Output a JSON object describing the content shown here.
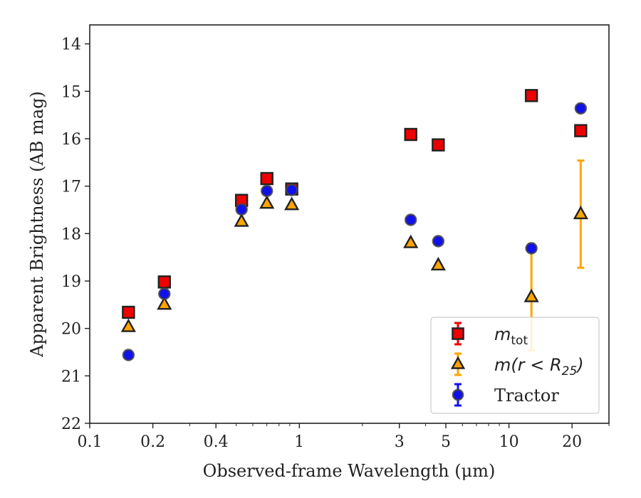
{
  "chart_data": {
    "type": "scatter",
    "title": "",
    "xlabel": "Observed-frame Wavelength (μm)",
    "ylabel": "Apparent Brightness (AB mag)",
    "xscale": "log",
    "xlim": [
      0.1,
      30
    ],
    "ylim": [
      22,
      13.6
    ],
    "y_inverted": true,
    "x_major_ticks": [
      0.1,
      0.2,
      0.4,
      1,
      3,
      5,
      10,
      20
    ],
    "x_major_tick_labels": [
      "0.1",
      "0.2",
      "0.4",
      "1",
      "3",
      "5",
      "10",
      "20"
    ],
    "y_ticks": [
      14,
      15,
      16,
      17,
      18,
      19,
      20,
      21,
      22
    ],
    "y_tick_labels": [
      "14",
      "15",
      "16",
      "17",
      "18",
      "19",
      "20",
      "21",
      "22"
    ],
    "grid": false,
    "legend_position": "lower-right",
    "series": [
      {
        "name": "m_tot",
        "legend_main": "m",
        "legend_sub": "tot",
        "marker": "square",
        "color": "#ee0000",
        "edgecolor": "#222222",
        "errcolor": "#ee0000",
        "points": [
          {
            "x": 0.153,
            "y": 19.66,
            "err": 0.04
          },
          {
            "x": 0.227,
            "y": 19.02,
            "err": 0.04
          },
          {
            "x": 0.53,
            "y": 17.3,
            "err": 0.03
          },
          {
            "x": 0.7,
            "y": 16.84,
            "err": 0.03
          },
          {
            "x": 0.92,
            "y": 17.06,
            "err": 0.03
          },
          {
            "x": 3.4,
            "y": 15.91,
            "err": 0.03
          },
          {
            "x": 4.6,
            "y": 16.13,
            "err": 0.03
          },
          {
            "x": 12.8,
            "y": 15.09,
            "err": 0.03
          },
          {
            "x": 22.0,
            "y": 15.83,
            "err": 0.03
          }
        ]
      },
      {
        "name": "m(r < R_25)",
        "legend_main": "m(r < R",
        "legend_sub": "25",
        "legend_tail": ")",
        "marker": "triangle",
        "color": "#ffa500",
        "edgecolor": "#222222",
        "errcolor": "#ffa500",
        "points": [
          {
            "x": 0.153,
            "y": 19.97,
            "err": 0.04
          },
          {
            "x": 0.227,
            "y": 19.5,
            "err": 0.04
          },
          {
            "x": 0.53,
            "y": 17.75,
            "err": 0.03
          },
          {
            "x": 0.7,
            "y": 17.37,
            "err": 0.03
          },
          {
            "x": 0.92,
            "y": 17.4,
            "err": 0.03
          },
          {
            "x": 3.4,
            "y": 18.2,
            "err": 0.04
          },
          {
            "x": 4.6,
            "y": 18.67,
            "err": 0.05
          },
          {
            "x": 12.8,
            "y": 19.34,
            "err": 1.12
          },
          {
            "x": 22.0,
            "y": 17.59,
            "err": 1.13
          }
        ]
      },
      {
        "name": "Tractor",
        "legend_main": "Tractor",
        "marker": "circle",
        "color": "#1010ee",
        "edgecolor": "#444444",
        "errcolor": "#1010ee",
        "points": [
          {
            "x": 0.153,
            "y": 20.56,
            "err": 0.05
          },
          {
            "x": 0.227,
            "y": 19.27,
            "err": 0.05
          },
          {
            "x": 0.53,
            "y": 17.49,
            "err": 0.04
          },
          {
            "x": 0.7,
            "y": 17.1,
            "err": 0.04
          },
          {
            "x": 0.92,
            "y": 17.08,
            "err": 0.04
          },
          {
            "x": 3.4,
            "y": 17.71,
            "err": 0.06
          },
          {
            "x": 4.6,
            "y": 18.16,
            "err": 0.06
          },
          {
            "x": 12.8,
            "y": 18.31,
            "err": 0.08
          },
          {
            "x": 22.0,
            "y": 15.36,
            "err": 0.05
          }
        ]
      }
    ]
  }
}
